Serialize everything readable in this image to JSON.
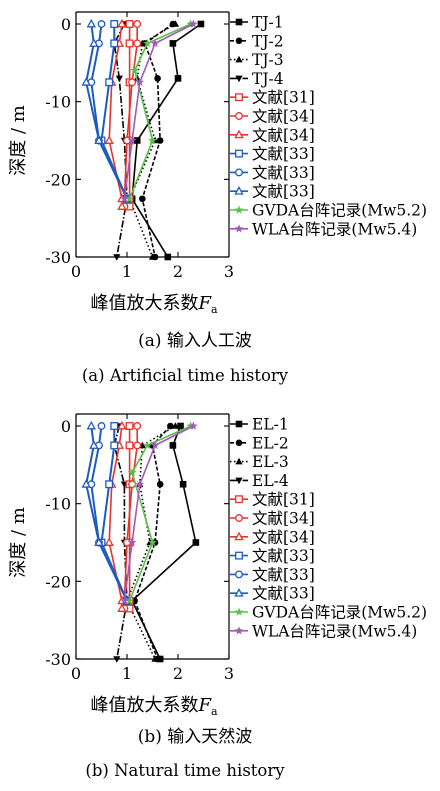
{
  "figure": {
    "caption_a_cn": "(a)  输入人工波",
    "caption_a_en": "(a)  Artificial time history",
    "caption_b_cn": "(b)  输入天然波",
    "caption_b_en": "(b)  Natural time history"
  },
  "chart_data": [
    {
      "type": "line",
      "ylabel": "深度 / m",
      "xlabel_main": "峰值放大系数",
      "xlabel_var": "F",
      "xlabel_sub": "a",
      "xlim": [
        0,
        3
      ],
      "ylim": [
        -30,
        0
      ],
      "xticks": [
        "0",
        "1",
        "2",
        "3"
      ],
      "yticks": [
        "0",
        "-10",
        "-20",
        "-30"
      ],
      "legend_position": "right",
      "series": [
        {
          "name": "TJ-1",
          "color": "#000000",
          "marker": "square",
          "dash": "solid",
          "x": [
            2.45,
            1.9,
            2.0,
            1.2,
            1.1,
            1.8
          ],
          "y": [
            0,
            -2.5,
            -7,
            -15,
            -22.5,
            -30
          ]
        },
        {
          "name": "TJ-2",
          "color": "#000000",
          "marker": "circle",
          "dash": "4,2",
          "x": [
            1.9,
            1.35,
            1.6,
            1.65,
            1.3,
            1.55
          ],
          "y": [
            0,
            -2.5,
            -7,
            -15,
            -22.5,
            -30
          ]
        },
        {
          "name": "TJ-3",
          "color": "#000000",
          "marker": "triangle-up",
          "dash": "1.5,2.5",
          "x": [
            1.95,
            1.3,
            1.2,
            1.55,
            1.05,
            1.5
          ],
          "y": [
            0,
            -2.5,
            -7,
            -15,
            -22.5,
            -30
          ]
        },
        {
          "name": "TJ-4",
          "color": "#000000",
          "marker": "triangle-down",
          "dash": "7,2,1.5,2",
          "x": [
            0.95,
            0.75,
            0.85,
            0.95,
            1.0,
            0.8
          ],
          "y": [
            0,
            -2.5,
            -7,
            -15,
            -22.5,
            -30
          ]
        },
        {
          "name": "文献[31]",
          "color": "#e8322c",
          "marker": "square-open",
          "dash": "solid",
          "x": [
            1.05,
            1.05,
            1.05,
            1.05,
            1.05,
            1.05
          ],
          "y": [
            0,
            -2.5,
            -7.5,
            -15,
            -22.5,
            -23.5
          ]
        },
        {
          "name": "文献[34]",
          "color": "#e8322c",
          "marker": "circle-open",
          "dash": "solid",
          "x": [
            1.2,
            1.2,
            1.1,
            1.0,
            0.95,
            0.95
          ],
          "y": [
            0,
            -2.5,
            -7.5,
            -15,
            -22.5,
            -23.5
          ]
        },
        {
          "name": "文献[34]",
          "color": "#e8322c",
          "marker": "triangle-open",
          "dash": "solid",
          "x": [
            0.9,
            0.85,
            0.7,
            0.65,
            0.9,
            0.9
          ],
          "y": [
            0,
            -2.5,
            -7.5,
            -15,
            -22.5,
            -23.5
          ]
        },
        {
          "name": "文献[33]",
          "color": "#1f5bbf",
          "marker": "square-open",
          "dash": "solid",
          "x": [
            0.75,
            0.75,
            0.65,
            0.5,
            1.0
          ],
          "y": [
            0,
            -2.5,
            -7.5,
            -15,
            -22.5
          ]
        },
        {
          "name": "文献[33]",
          "color": "#1f5bbf",
          "marker": "circle-open",
          "dash": "solid",
          "x": [
            0.5,
            0.45,
            0.3,
            0.45,
            1.0
          ],
          "y": [
            0,
            -2.5,
            -7.5,
            -15,
            -22.5
          ]
        },
        {
          "name": "文献[33]",
          "color": "#1f5bbf",
          "marker": "triangle-open",
          "dash": "solid",
          "x": [
            0.3,
            0.35,
            0.2,
            0.45,
            1.0
          ],
          "y": [
            0,
            -2.5,
            -7.5,
            -15,
            -22.5
          ]
        },
        {
          "name": "GVDA台阵记录(Mw5.2)",
          "color": "#5cbe4c",
          "marker": "star",
          "dash": "solid",
          "x": [
            2.25,
            1.4,
            1.15,
            1.5,
            1.05
          ],
          "y": [
            0,
            -2.5,
            -6,
            -15,
            -22.5
          ]
        },
        {
          "name": "WLA台阵记录(Mw5.4)",
          "color": "#a05ab8",
          "marker": "star",
          "dash": "solid",
          "x": [
            2.3,
            1.55,
            1.25,
            1.1,
            0.95
          ],
          "y": [
            0,
            -2.5,
            -7.5,
            -15,
            -22.5
          ]
        }
      ]
    },
    {
      "type": "line",
      "ylabel": "深度 / m",
      "xlabel_main": "峰值放大系数",
      "xlabel_var": "F",
      "xlabel_sub": "a",
      "xlim": [
        0,
        3
      ],
      "ylim": [
        -30,
        0
      ],
      "xticks": [
        "0",
        "1",
        "2",
        "3"
      ],
      "yticks": [
        "0",
        "-10",
        "-20",
        "-30"
      ],
      "legend_position": "right",
      "series": [
        {
          "name": "EL-1",
          "color": "#000000",
          "marker": "square",
          "dash": "solid",
          "x": [
            2.05,
            1.9,
            2.1,
            2.35,
            1.1,
            1.65
          ],
          "y": [
            0,
            -2.5,
            -7.5,
            -15,
            -22.5,
            -30
          ]
        },
        {
          "name": "EL-2",
          "color": "#000000",
          "marker": "circle",
          "dash": "4,2",
          "x": [
            1.85,
            1.5,
            1.65,
            1.55,
            1.15,
            1.6
          ],
          "y": [
            0,
            -2.5,
            -7.5,
            -15,
            -22.5,
            -30
          ]
        },
        {
          "name": "EL-3",
          "color": "#000000",
          "marker": "triangle-up",
          "dash": "1.5,2.5",
          "x": [
            1.95,
            1.3,
            1.25,
            1.45,
            1.0,
            1.55
          ],
          "y": [
            0,
            -2.5,
            -7.5,
            -15,
            -22.5,
            -30
          ]
        },
        {
          "name": "EL-4",
          "color": "#000000",
          "marker": "triangle-down",
          "dash": "7,2,1.5,2",
          "x": [
            0.85,
            0.75,
            0.95,
            0.95,
            1.0,
            0.8
          ],
          "y": [
            0,
            -2.5,
            -7.5,
            -15,
            -22.5,
            -30
          ]
        },
        {
          "name": "文献[31]",
          "color": "#e8322c",
          "marker": "square-open",
          "dash": "solid",
          "x": [
            1.05,
            1.05,
            1.05,
            1.05,
            1.05,
            1.05
          ],
          "y": [
            0,
            -2.5,
            -7.5,
            -15,
            -22.5,
            -23.5
          ]
        },
        {
          "name": "文献[34]",
          "color": "#e8322c",
          "marker": "circle-open",
          "dash": "solid",
          "x": [
            1.2,
            1.2,
            1.1,
            1.0,
            0.95,
            0.95
          ],
          "y": [
            0,
            -2.5,
            -7.5,
            -15,
            -22.5,
            -23.5
          ]
        },
        {
          "name": "文献[34]",
          "color": "#e8322c",
          "marker": "triangle-open",
          "dash": "solid",
          "x": [
            0.9,
            0.85,
            0.7,
            0.65,
            0.9,
            0.9
          ],
          "y": [
            0,
            -2.5,
            -7.5,
            -15,
            -22.5,
            -23.5
          ]
        },
        {
          "name": "文献[33]",
          "color": "#1f5bbf",
          "marker": "square-open",
          "dash": "solid",
          "x": [
            0.75,
            0.75,
            0.65,
            0.5,
            1.0
          ],
          "y": [
            0,
            -2.5,
            -7.5,
            -15,
            -22.5
          ]
        },
        {
          "name": "文献[33]",
          "color": "#1f5bbf",
          "marker": "circle-open",
          "dash": "solid",
          "x": [
            0.5,
            0.45,
            0.3,
            0.45,
            1.0
          ],
          "y": [
            0,
            -2.5,
            -7.5,
            -15,
            -22.5
          ]
        },
        {
          "name": "文献[33]",
          "color": "#1f5bbf",
          "marker": "triangle-open",
          "dash": "solid",
          "x": [
            0.3,
            0.35,
            0.2,
            0.45,
            1.0
          ],
          "y": [
            0,
            -2.5,
            -7.5,
            -15,
            -22.5
          ]
        },
        {
          "name": "GVDA台阵记录(Mw5.2)",
          "color": "#5cbe4c",
          "marker": "star",
          "dash": "solid",
          "x": [
            2.25,
            1.4,
            1.1,
            1.5,
            1.05
          ],
          "y": [
            0,
            -2.5,
            -6,
            -15,
            -22.5
          ]
        },
        {
          "name": "WLA台阵记录(Mw5.4)",
          "color": "#a05ab8",
          "marker": "star",
          "dash": "solid",
          "x": [
            2.3,
            1.55,
            1.25,
            1.1,
            0.95
          ],
          "y": [
            0,
            -2.5,
            -7.5,
            -15,
            -22.5
          ]
        }
      ]
    }
  ]
}
